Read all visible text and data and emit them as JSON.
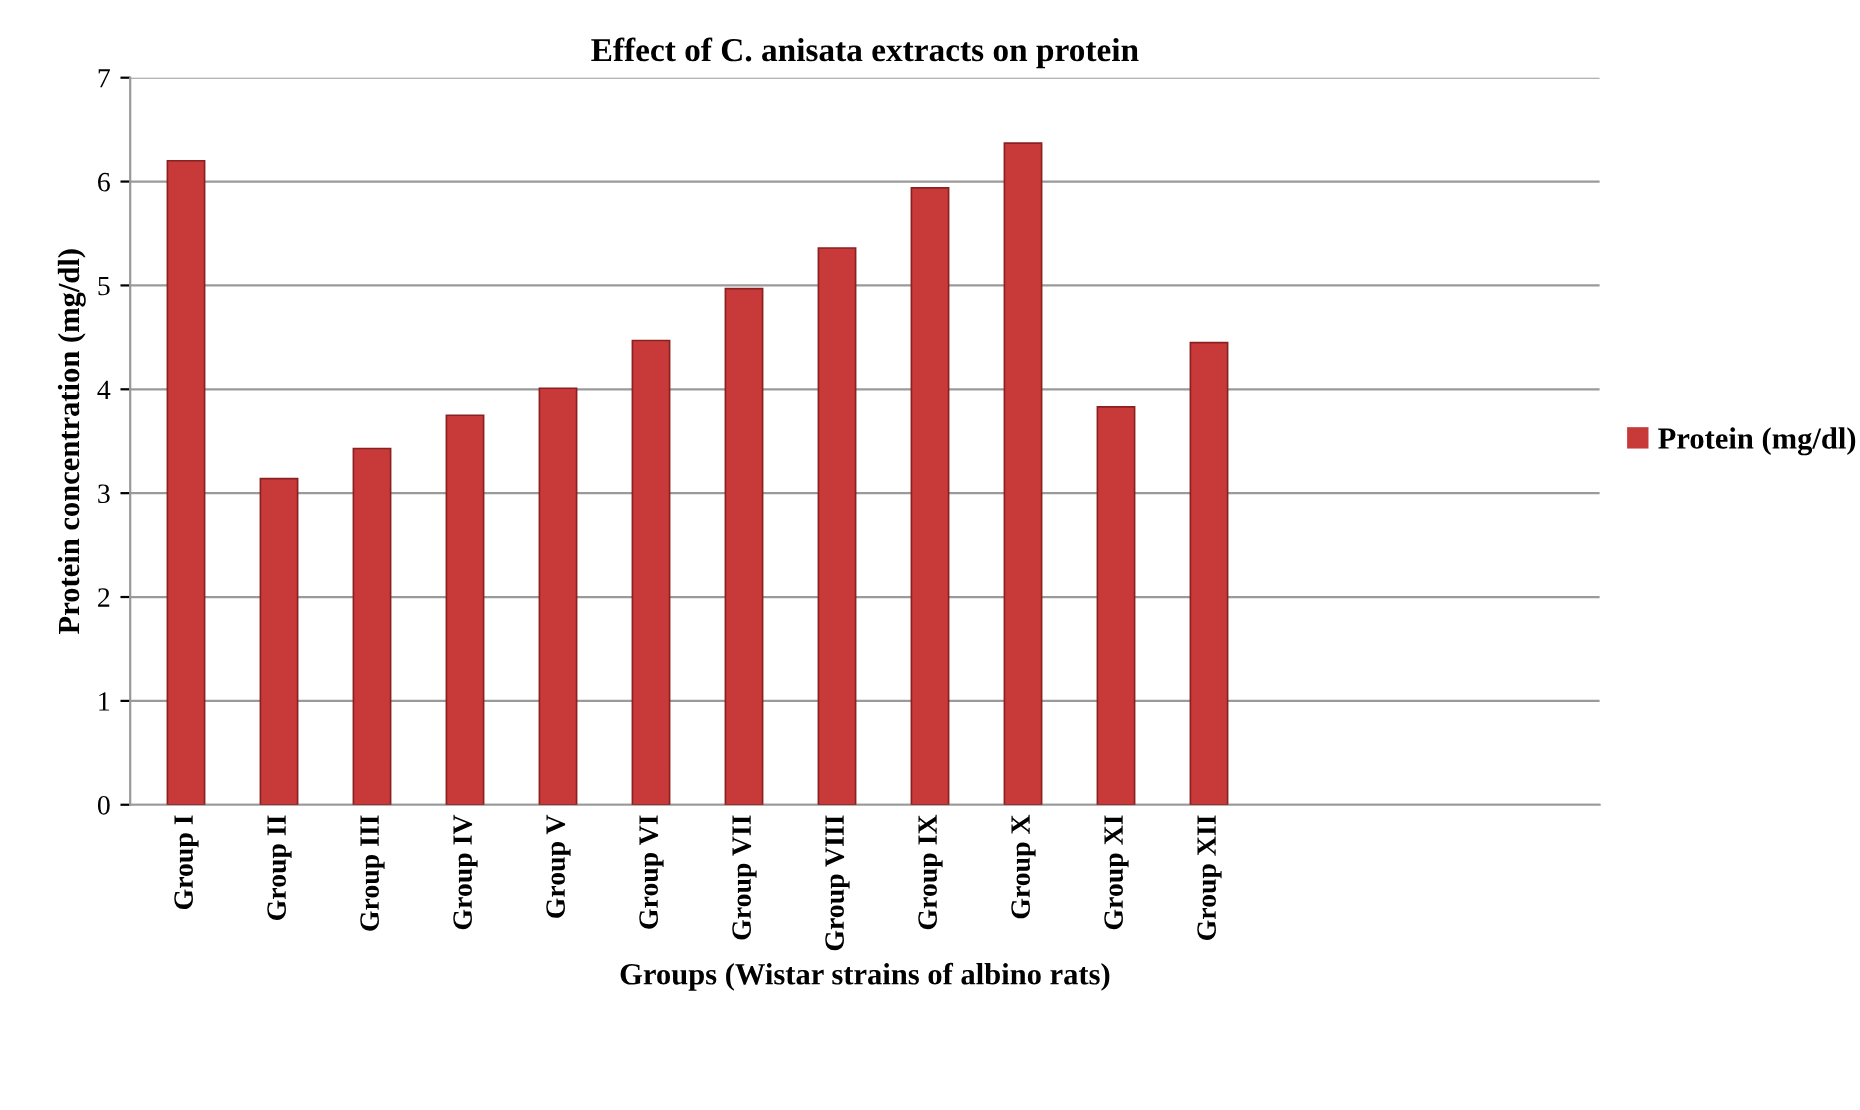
{
  "chart_data": {
    "type": "bar",
    "title": "Effect of C. anisata extracts on protein",
    "xlabel": "Groups (Wistar strains of albino rats)",
    "ylabel": "Protein concentration (mg/dl)",
    "categories": [
      "Group I",
      "Group II",
      "Group III",
      "Group IV",
      "Group V",
      "Group VI",
      "Group VII",
      "Group VIII",
      "Group IX",
      "Group X",
      "Group XI",
      "Group XII"
    ],
    "series": [
      {
        "name": "Protein (mg/dl)",
        "color": "#c83a3a",
        "values": [
          6.2,
          3.14,
          3.43,
          3.75,
          4.01,
          4.47,
          4.97,
          5.36,
          5.94,
          6.37,
          3.83,
          4.45
        ]
      }
    ],
    "ylim": [
      0,
      7
    ],
    "yticks": [
      0,
      1,
      2,
      3,
      4,
      5,
      6,
      7
    ],
    "grid": "y",
    "legend": "right"
  }
}
